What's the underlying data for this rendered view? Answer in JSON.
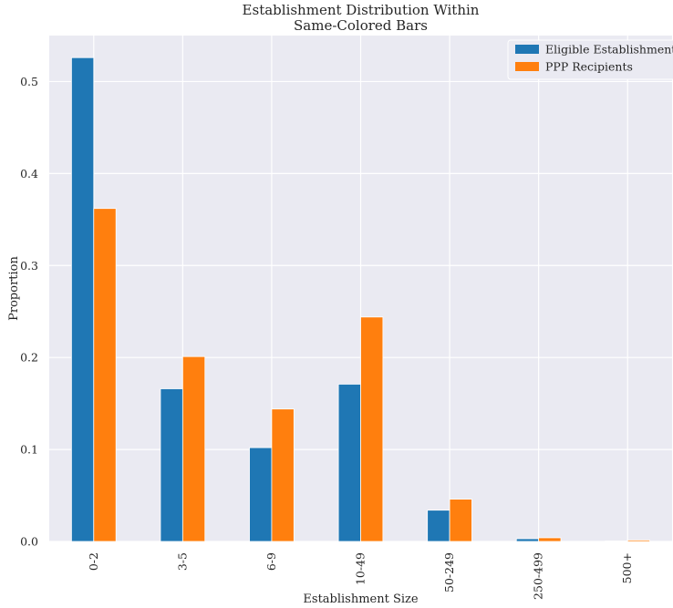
{
  "chart_data": {
    "type": "bar",
    "title_lines": [
      "Establishment Distribution Within",
      "Same-Colored Bars"
    ],
    "xlabel": "Establishment Size",
    "ylabel": "Proportion",
    "categories": [
      "0-2",
      "3-5",
      "6-9",
      "10-49",
      "50-249",
      "250-499",
      "500+"
    ],
    "series": [
      {
        "name": "Eligible Establishments",
        "color": "#1f77b4",
        "values": [
          0.526,
          0.166,
          0.102,
          0.171,
          0.034,
          0.003,
          0.0005
        ]
      },
      {
        "name": "PPP Recipients",
        "color": "#ff7f0e",
        "values": [
          0.362,
          0.201,
          0.144,
          0.244,
          0.046,
          0.004,
          0.0015
        ]
      }
    ],
    "ylim": [
      0,
      0.55
    ],
    "yticks": [
      0.0,
      0.1,
      0.2,
      0.3,
      0.4,
      0.5
    ],
    "ytick_labels": [
      "0.0",
      "0.1",
      "0.2",
      "0.3",
      "0.4",
      "0.5"
    ],
    "grid": true,
    "legend_position": "top-right",
    "background": "#eaeaf2"
  }
}
